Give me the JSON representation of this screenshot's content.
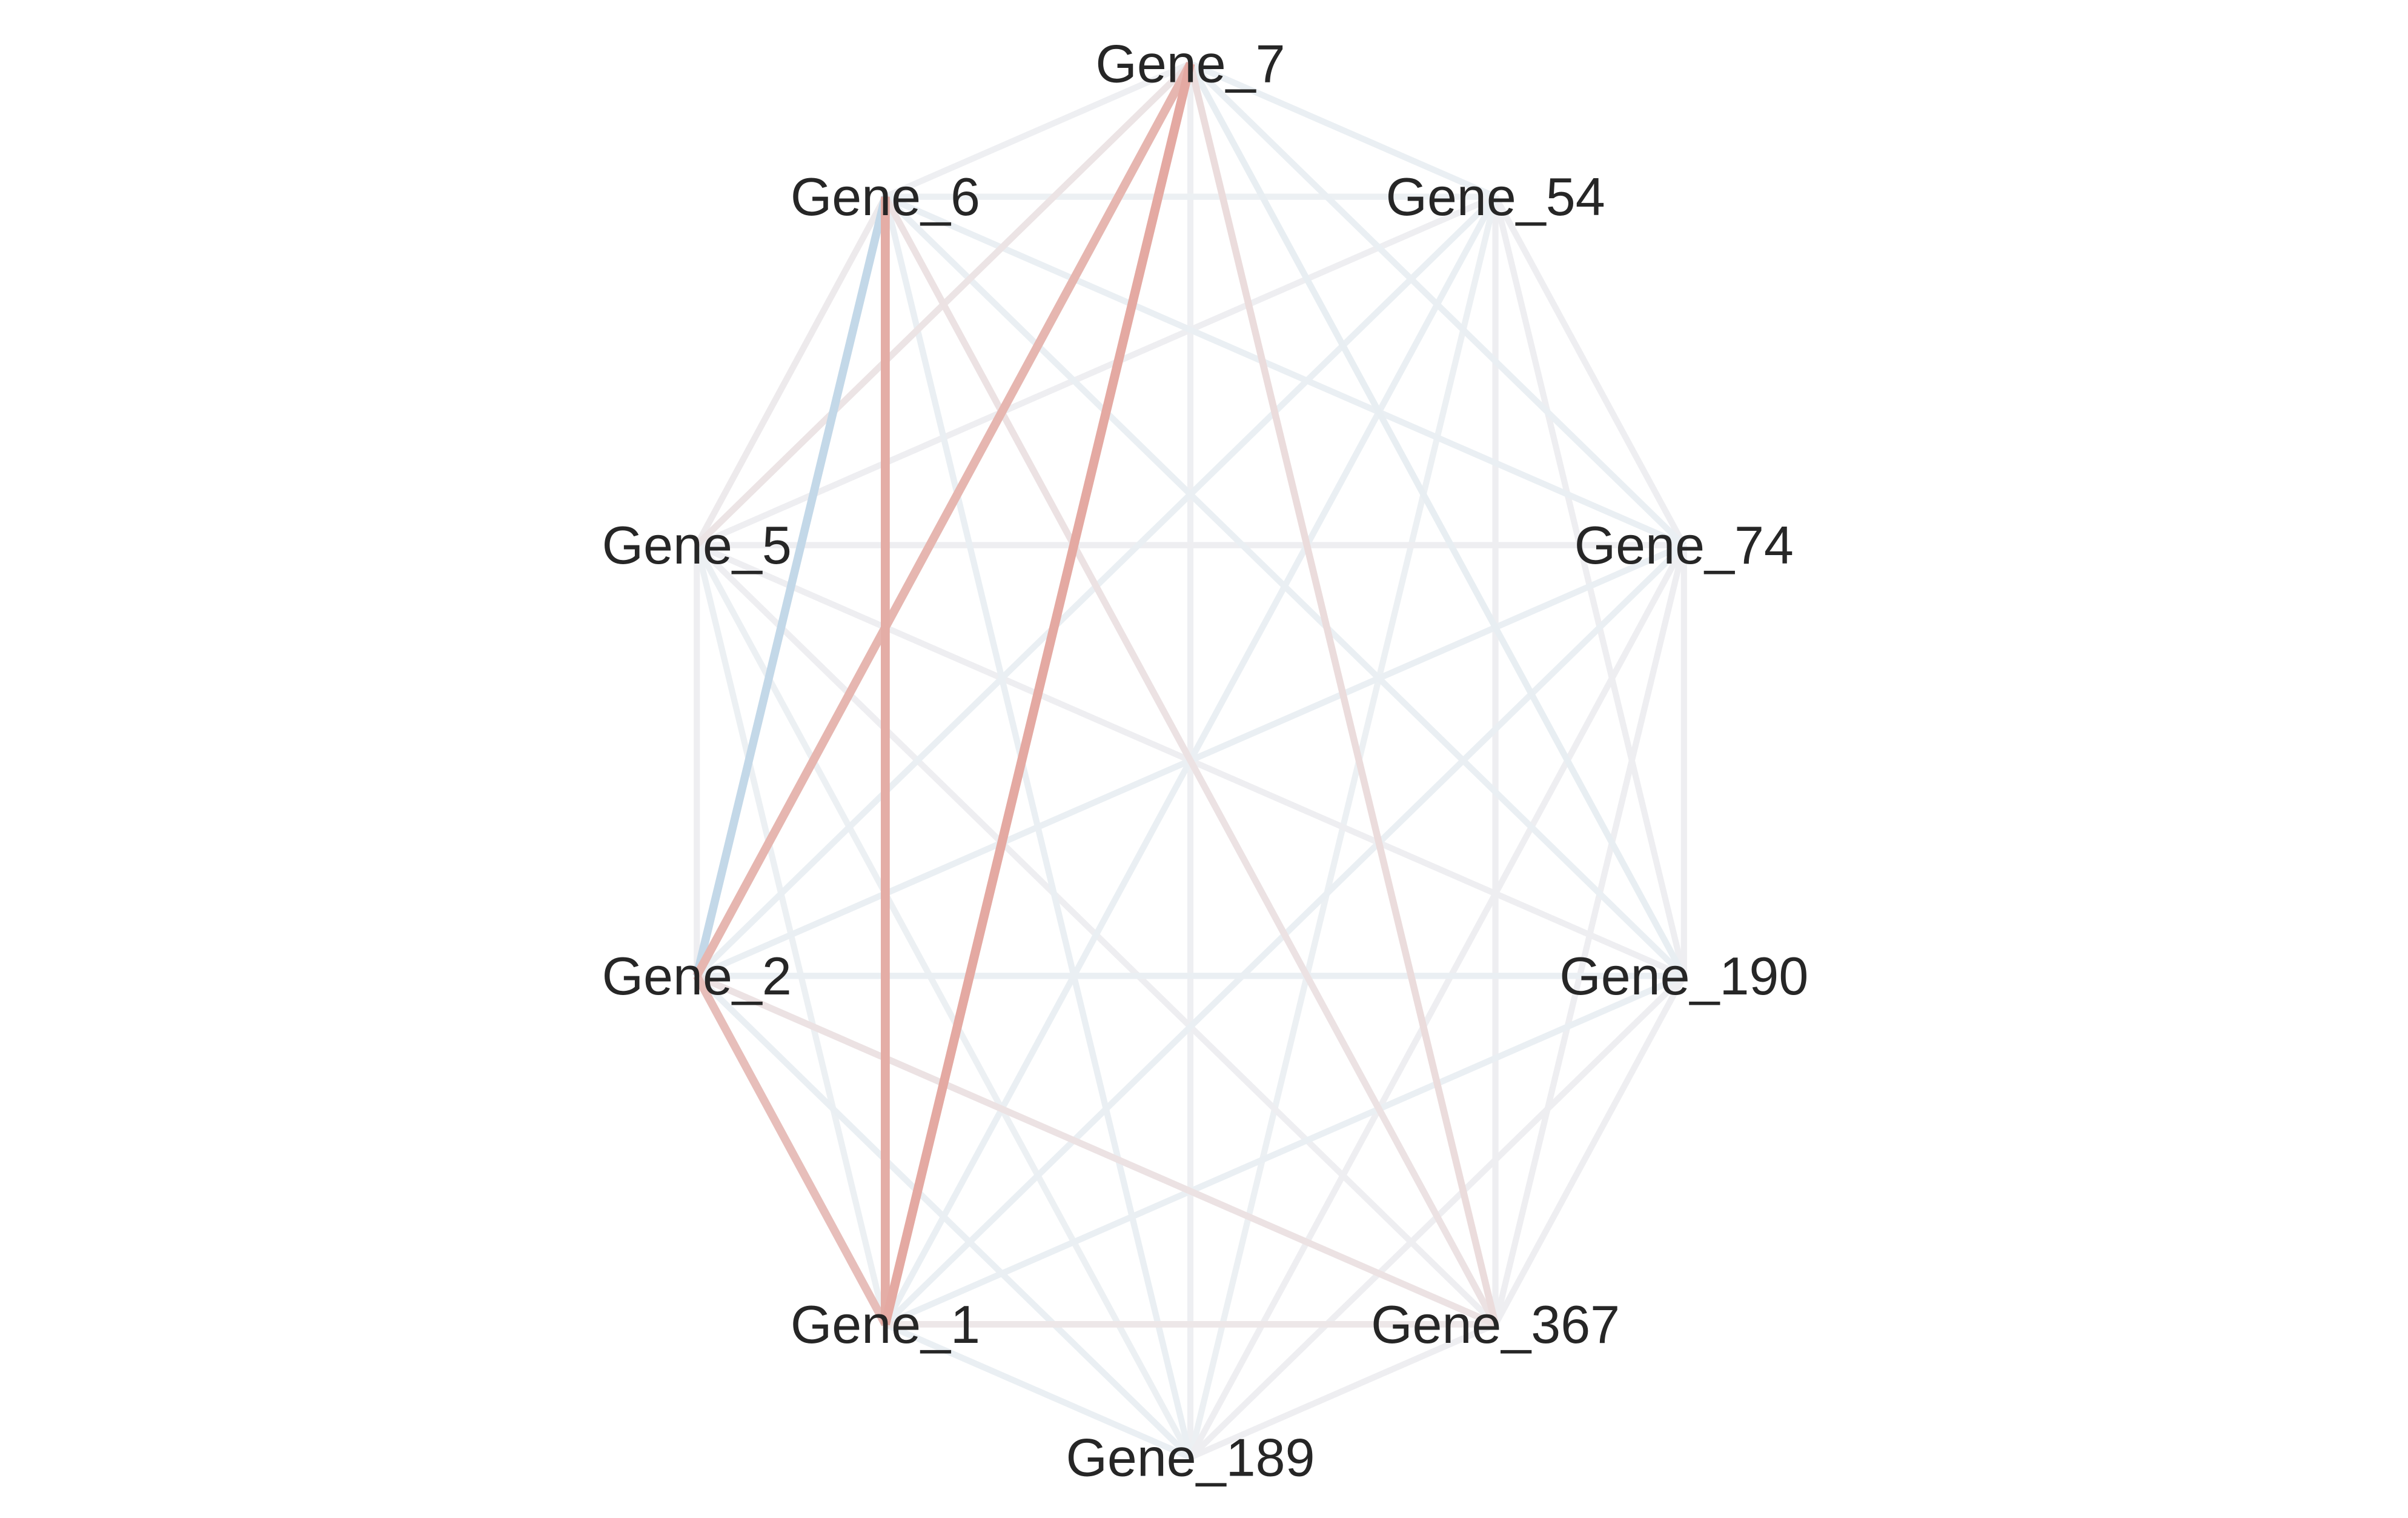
{
  "diagram": {
    "type": "gene-correlation-network",
    "layout": "circular",
    "edge_color_scale": {
      "negative": "#a6c8e0",
      "neutral": "#eef1f4",
      "positive": "#e29c93"
    },
    "nodes": [
      {
        "id": "Gene_7",
        "label": "Gene_7"
      },
      {
        "id": "Gene_54",
        "label": "Gene_54"
      },
      {
        "id": "Gene_74",
        "label": "Gene_74"
      },
      {
        "id": "Gene_190",
        "label": "Gene_190"
      },
      {
        "id": "Gene_367",
        "label": "Gene_367"
      },
      {
        "id": "Gene_189",
        "label": "Gene_189"
      },
      {
        "id": "Gene_1",
        "label": "Gene_1"
      },
      {
        "id": "Gene_2",
        "label": "Gene_2"
      },
      {
        "id": "Gene_5",
        "label": "Gene_5"
      },
      {
        "id": "Gene_6",
        "label": "Gene_6"
      }
    ],
    "edges": [
      {
        "source": "Gene_7",
        "target": "Gene_54",
        "weight": -0.05
      },
      {
        "source": "Gene_7",
        "target": "Gene_74",
        "weight": -0.05
      },
      {
        "source": "Gene_7",
        "target": "Gene_190",
        "weight": -0.08
      },
      {
        "source": "Gene_7",
        "target": "Gene_367",
        "weight": 0.25
      },
      {
        "source": "Gene_7",
        "target": "Gene_189",
        "weight": 0.02
      },
      {
        "source": "Gene_7",
        "target": "Gene_1",
        "weight": 0.85
      },
      {
        "source": "Gene_7",
        "target": "Gene_2",
        "weight": 0.7
      },
      {
        "source": "Gene_7",
        "target": "Gene_5",
        "weight": 0.15
      },
      {
        "source": "Gene_7",
        "target": "Gene_6",
        "weight": 0.02
      },
      {
        "source": "Gene_54",
        "target": "Gene_74",
        "weight": 0.03
      },
      {
        "source": "Gene_54",
        "target": "Gene_190",
        "weight": 0.03
      },
      {
        "source": "Gene_54",
        "target": "Gene_367",
        "weight": 0.03
      },
      {
        "source": "Gene_54",
        "target": "Gene_189",
        "weight": -0.03
      },
      {
        "source": "Gene_54",
        "target": "Gene_1",
        "weight": -0.05
      },
      {
        "source": "Gene_54",
        "target": "Gene_2",
        "weight": -0.05
      },
      {
        "source": "Gene_54",
        "target": "Gene_5",
        "weight": 0.03
      },
      {
        "source": "Gene_54",
        "target": "Gene_6",
        "weight": -0.03
      },
      {
        "source": "Gene_74",
        "target": "Gene_190",
        "weight": 0.03
      },
      {
        "source": "Gene_74",
        "target": "Gene_367",
        "weight": 0.03
      },
      {
        "source": "Gene_74",
        "target": "Gene_189",
        "weight": 0.03
      },
      {
        "source": "Gene_74",
        "target": "Gene_1",
        "weight": -0.05
      },
      {
        "source": "Gene_74",
        "target": "Gene_2",
        "weight": -0.05
      },
      {
        "source": "Gene_74",
        "target": "Gene_5",
        "weight": 0.03
      },
      {
        "source": "Gene_74",
        "target": "Gene_6",
        "weight": -0.05
      },
      {
        "source": "Gene_190",
        "target": "Gene_367",
        "weight": 0.03
      },
      {
        "source": "Gene_190",
        "target": "Gene_189",
        "weight": 0.03
      },
      {
        "source": "Gene_190",
        "target": "Gene_1",
        "weight": -0.05
      },
      {
        "source": "Gene_190",
        "target": "Gene_2",
        "weight": -0.05
      },
      {
        "source": "Gene_190",
        "target": "Gene_5",
        "weight": 0.03
      },
      {
        "source": "Gene_190",
        "target": "Gene_6",
        "weight": -0.05
      },
      {
        "source": "Gene_367",
        "target": "Gene_189",
        "weight": 0.03
      },
      {
        "source": "Gene_367",
        "target": "Gene_1",
        "weight": 0.12
      },
      {
        "source": "Gene_367",
        "target": "Gene_2",
        "weight": 0.18
      },
      {
        "source": "Gene_367",
        "target": "Gene_5",
        "weight": 0.03
      },
      {
        "source": "Gene_367",
        "target": "Gene_6",
        "weight": 0.18
      },
      {
        "source": "Gene_189",
        "target": "Gene_1",
        "weight": -0.05
      },
      {
        "source": "Gene_189",
        "target": "Gene_2",
        "weight": -0.05
      },
      {
        "source": "Gene_189",
        "target": "Gene_5",
        "weight": -0.03
      },
      {
        "source": "Gene_189",
        "target": "Gene_6",
        "weight": -0.05
      },
      {
        "source": "Gene_1",
        "target": "Gene_2",
        "weight": 0.6
      },
      {
        "source": "Gene_1",
        "target": "Gene_5",
        "weight": -0.03
      },
      {
        "source": "Gene_1",
        "target": "Gene_6",
        "weight": 0.8
      },
      {
        "source": "Gene_2",
        "target": "Gene_5",
        "weight": 0.03
      },
      {
        "source": "Gene_2",
        "target": "Gene_6",
        "weight": -0.6
      },
      {
        "source": "Gene_5",
        "target": "Gene_6",
        "weight": 0.08
      }
    ]
  }
}
